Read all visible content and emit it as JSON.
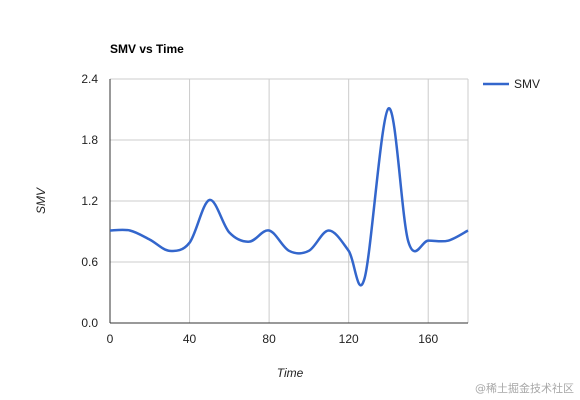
{
  "chart_data": {
    "type": "line",
    "title": "SMV vs Time",
    "xlabel": "Time",
    "ylabel": "SMV",
    "xlim": [
      0,
      180
    ],
    "ylim": [
      0,
      2.4
    ],
    "x_ticks": [
      0,
      40,
      80,
      120,
      160
    ],
    "x_tick_labels": [
      "0",
      "40",
      "80",
      "120",
      "160"
    ],
    "y_ticks": [
      0,
      0.6,
      1.2,
      1.8,
      2.4
    ],
    "y_tick_labels": [
      "0.0",
      "0.6",
      "1.2",
      "1.8",
      "2.4"
    ],
    "grid": true,
    "legend_position": "right",
    "series": [
      {
        "name": "SMV",
        "color": "#3366cc",
        "x": [
          0,
          10,
          20,
          30,
          40,
          50,
          60,
          70,
          80,
          90,
          100,
          110,
          120,
          128,
          140,
          150,
          160,
          170,
          180
        ],
        "y": [
          0.91,
          0.91,
          0.82,
          0.71,
          0.79,
          1.21,
          0.89,
          0.8,
          0.91,
          0.71,
          0.71,
          0.91,
          0.71,
          0.44,
          2.11,
          0.8,
          0.81,
          0.81,
          0.91
        ]
      }
    ]
  },
  "watermark": "@稀土掘金技术社区"
}
